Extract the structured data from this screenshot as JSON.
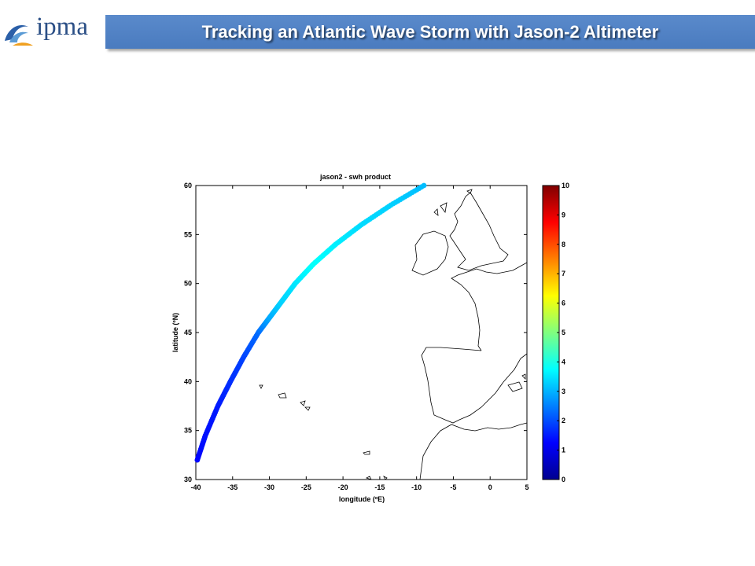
{
  "logo": {
    "text": "ipma",
    "icon": "wave-logo-icon"
  },
  "slide": {
    "title": "Tracking an Atlantic Wave Storm with Jason-2 Altimeter"
  },
  "colors": {
    "title_bar": "#4f81bd",
    "title_text": "#ffffff",
    "coast": "#000000"
  },
  "chart_data": {
    "type": "scatter",
    "title": "jason2 - swh product",
    "xlabel": "longitude (ºE)",
    "ylabel": "latitude (ºN)",
    "xlim": [
      -40,
      5
    ],
    "ylim": [
      30,
      60
    ],
    "xticks": [
      "-40",
      "-35",
      "-30",
      "-25",
      "-20",
      "-15",
      "-10",
      "-5",
      "0",
      "5"
    ],
    "yticks": [
      "30",
      "35",
      "40",
      "45",
      "50",
      "55",
      "60"
    ],
    "colorbar": {
      "range": [
        0,
        10
      ],
      "ticks": [
        "0",
        "1",
        "2",
        "3",
        "4",
        "5",
        "6",
        "7",
        "8",
        "9",
        "10"
      ],
      "colormap": "jet"
    },
    "grid": false,
    "series": [
      {
        "points": [
          {
            "lon": -39.8,
            "lat": 32.0,
            "swh": 1.3
          },
          {
            "lon": -38.7,
            "lat": 34.5,
            "swh": 1.4
          },
          {
            "lon": -37.0,
            "lat": 37.5,
            "swh": 1.5
          },
          {
            "lon": -35.3,
            "lat": 40.0,
            "swh": 1.7
          },
          {
            "lon": -33.5,
            "lat": 42.5,
            "swh": 1.9
          },
          {
            "lon": -31.5,
            "lat": 45.0,
            "swh": 2.3
          },
          {
            "lon": -30.0,
            "lat": 46.5,
            "swh": 2.9
          },
          {
            "lon": -28.5,
            "lat": 48.0,
            "swh": 3.3
          },
          {
            "lon": -26.5,
            "lat": 50.0,
            "swh": 3.5
          },
          {
            "lon": -24.0,
            "lat": 52.0,
            "swh": 3.8
          },
          {
            "lon": -21.0,
            "lat": 54.0,
            "swh": 3.6
          },
          {
            "lon": -17.5,
            "lat": 56.0,
            "swh": 3.4
          },
          {
            "lon": -13.5,
            "lat": 58.0,
            "swh": 3.3
          },
          {
            "lon": -9.0,
            "lat": 60.0,
            "swh": 3.1
          }
        ]
      }
    ]
  }
}
